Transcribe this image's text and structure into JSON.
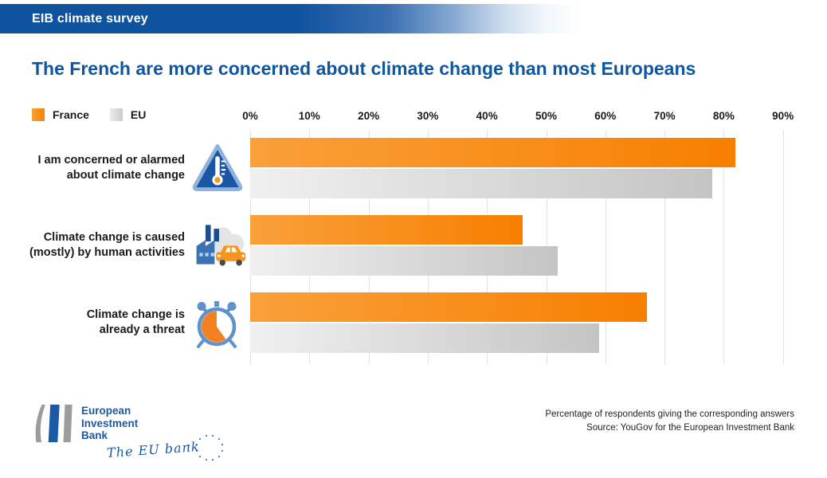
{
  "header": {
    "title": "EIB climate survey"
  },
  "page_title": "The French are more concerned about climate change than most Europeans",
  "legend": {
    "items": [
      {
        "label": "France",
        "color": "#F7941E"
      },
      {
        "label": "EU",
        "color": "#D9D9D9"
      }
    ]
  },
  "axis": {
    "ticks": [
      "0%",
      "10%",
      "20%",
      "30%",
      "40%",
      "50%",
      "60%",
      "70%",
      "80%",
      "90%"
    ]
  },
  "chart_data": {
    "type": "bar",
    "orientation": "horizontal",
    "title": "The French are more concerned about climate change than most Europeans",
    "categories": [
      "I am concerned or alarmed about climate change",
      "Climate change is caused (mostly) by human activities",
      "Climate change is already a threat"
    ],
    "category_lines": [
      [
        "I am concerned or alarmed",
        "about climate change"
      ],
      [
        "Climate change is caused",
        "(mostly) by human activities"
      ],
      [
        "Climate change is",
        "already a threat"
      ]
    ],
    "category_icons": [
      "thermometer-warning-icon",
      "factory-car-emissions-icon",
      "alarm-clock-icon"
    ],
    "series": [
      {
        "name": "France",
        "color": "#F7941E",
        "values": [
          82,
          46,
          67
        ]
      },
      {
        "name": "EU",
        "color": "#D9D9D9",
        "values": [
          78,
          52,
          59
        ]
      }
    ],
    "xlabel": "",
    "ylabel": "",
    "xlim": [
      0,
      90
    ],
    "tick_step": 10,
    "grid": "vertical-only",
    "legend_position": "top-left",
    "value_unit": "%"
  },
  "footer": {
    "logo_lines": [
      "European",
      "Investment",
      "Bank"
    ],
    "logo_tagline": "The EU bank",
    "note_line1": "Percentage of respondents giving the corresponding answers",
    "note_line2": "Source: YouGov for the European Investment Bank"
  },
  "colors": {
    "banner_blue": "#0F539F",
    "title_blue": "#0E56A0",
    "france_orange": "#F7941E",
    "eu_gray": "#D9D9D9",
    "gridline": "#E2E2E2",
    "logo_blue": "#1B5AA5"
  }
}
